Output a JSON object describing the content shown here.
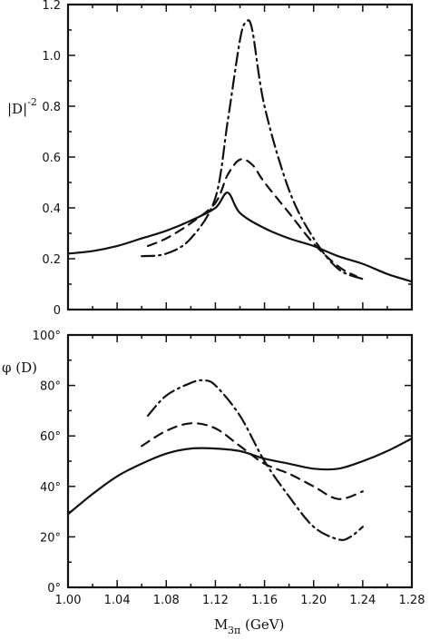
{
  "chart_data": [
    {
      "type": "line",
      "ylabel": "|D|-2",
      "ylim": [
        0,
        1.2
      ],
      "xlim": [
        1.0,
        1.28
      ],
      "y_ticks": [
        "0",
        "0.2",
        "0.4",
        "0.6",
        "0.8",
        "1.0",
        "1.2"
      ],
      "grid": false,
      "series": [
        {
          "style": "solid",
          "x": [
            1.0,
            1.02,
            1.04,
            1.06,
            1.08,
            1.1,
            1.12,
            1.13,
            1.14,
            1.16,
            1.18,
            1.2,
            1.22,
            1.24,
            1.26,
            1.28
          ],
          "values": [
            0.22,
            0.23,
            0.25,
            0.28,
            0.31,
            0.35,
            0.4,
            0.46,
            0.38,
            0.32,
            0.28,
            0.25,
            0.21,
            0.18,
            0.14,
            0.11
          ]
        },
        {
          "style": "dashed",
          "x": [
            1.065,
            1.08,
            1.1,
            1.12,
            1.13,
            1.14,
            1.15,
            1.16,
            1.18,
            1.2,
            1.22,
            1.235
          ],
          "values": [
            0.25,
            0.28,
            0.34,
            0.42,
            0.53,
            0.59,
            0.57,
            0.5,
            0.38,
            0.26,
            0.17,
            0.13
          ]
        },
        {
          "style": "dash-dot",
          "x": [
            1.06,
            1.08,
            1.1,
            1.12,
            1.13,
            1.14,
            1.145,
            1.15,
            1.16,
            1.18,
            1.2,
            1.22,
            1.24
          ],
          "values": [
            0.21,
            0.22,
            0.28,
            0.44,
            0.74,
            1.06,
            1.13,
            1.1,
            0.8,
            0.47,
            0.28,
            0.16,
            0.12
          ]
        }
      ]
    },
    {
      "type": "line",
      "ylabel": "φ (D)",
      "xlabel": "M3π (GeV)",
      "xlabel_main": "M",
      "xlabel_sub": "3π",
      "xlabel_units": "(GeV)",
      "ylim": [
        0,
        100
      ],
      "xlim": [
        1.0,
        1.28
      ],
      "x_ticks": [
        "1.00",
        "1.04",
        "1.08",
        "1.12",
        "1.16",
        "1.20",
        "1.24",
        "1.28"
      ],
      "y_ticks": [
        "0°",
        "20°",
        "40°",
        "60°",
        "80°",
        "100°"
      ],
      "grid": false,
      "series": [
        {
          "style": "solid",
          "x": [
            1.0,
            1.02,
            1.04,
            1.06,
            1.08,
            1.1,
            1.12,
            1.14,
            1.16,
            1.18,
            1.2,
            1.22,
            1.24,
            1.26,
            1.28
          ],
          "values": [
            29,
            37,
            44,
            49,
            53,
            55,
            55,
            54,
            51,
            49,
            47,
            47,
            50,
            54,
            59
          ]
        },
        {
          "style": "dashed",
          "x": [
            1.06,
            1.08,
            1.1,
            1.12,
            1.14,
            1.16,
            1.18,
            1.2,
            1.22,
            1.24
          ],
          "values": [
            56,
            62,
            65,
            63,
            56,
            49,
            45,
            40,
            35,
            38
          ]
        },
        {
          "style": "dash-dot",
          "x": [
            1.065,
            1.08,
            1.1,
            1.11,
            1.12,
            1.14,
            1.16,
            1.18,
            1.2,
            1.22,
            1.23,
            1.24
          ],
          "values": [
            68,
            76,
            81,
            82,
            80,
            68,
            50,
            36,
            24,
            19,
            20,
            24
          ]
        }
      ]
    }
  ]
}
